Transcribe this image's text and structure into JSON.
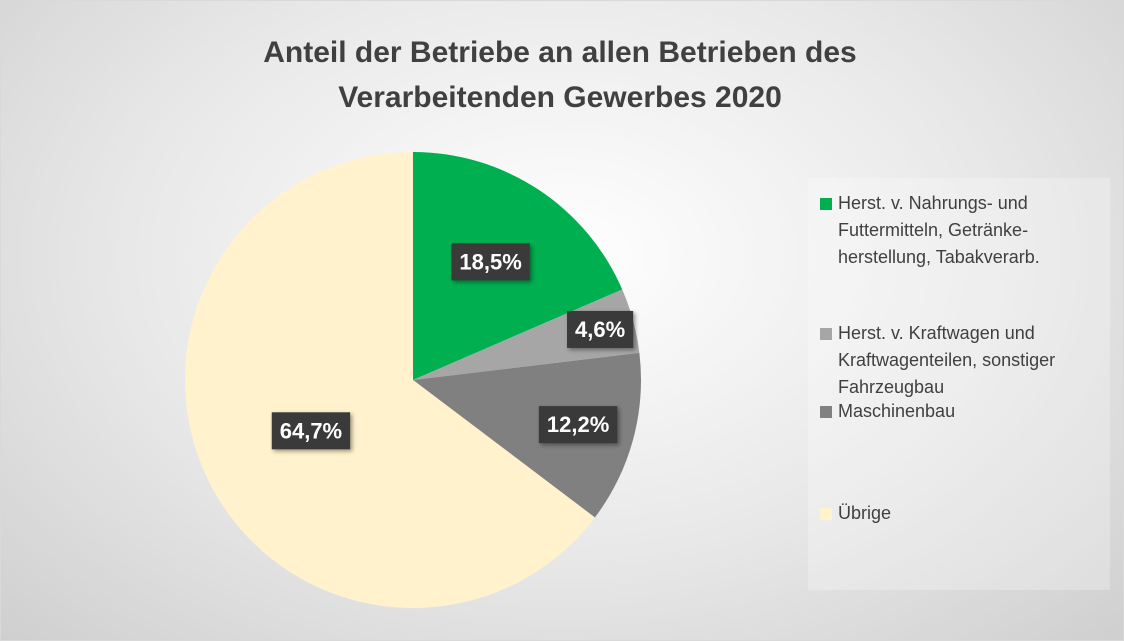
{
  "chart_data": {
    "type": "pie",
    "title": "Anteil der Betriebe an allen Betrieben des Verarbeitenden Gewerbes 2020",
    "categories": [
      "Herst. v. Nahrungs- und Futtermitteln, Getränke-herstellung, Tabakverarb.",
      "Herst. v. Kraftwagen und Kraftwagenteilen, sonstiger Fahrzeugbau",
      "Maschinenbau",
      "Übrige"
    ],
    "values": [
      18.5,
      4.6,
      12.2,
      64.7
    ],
    "value_labels": [
      "18,5%",
      "4,6%",
      "12,2%",
      "64,7%"
    ],
    "colors": [
      "#00b050",
      "#a6a6a6",
      "#808080",
      "#fff2cc"
    ],
    "legend": "right"
  }
}
